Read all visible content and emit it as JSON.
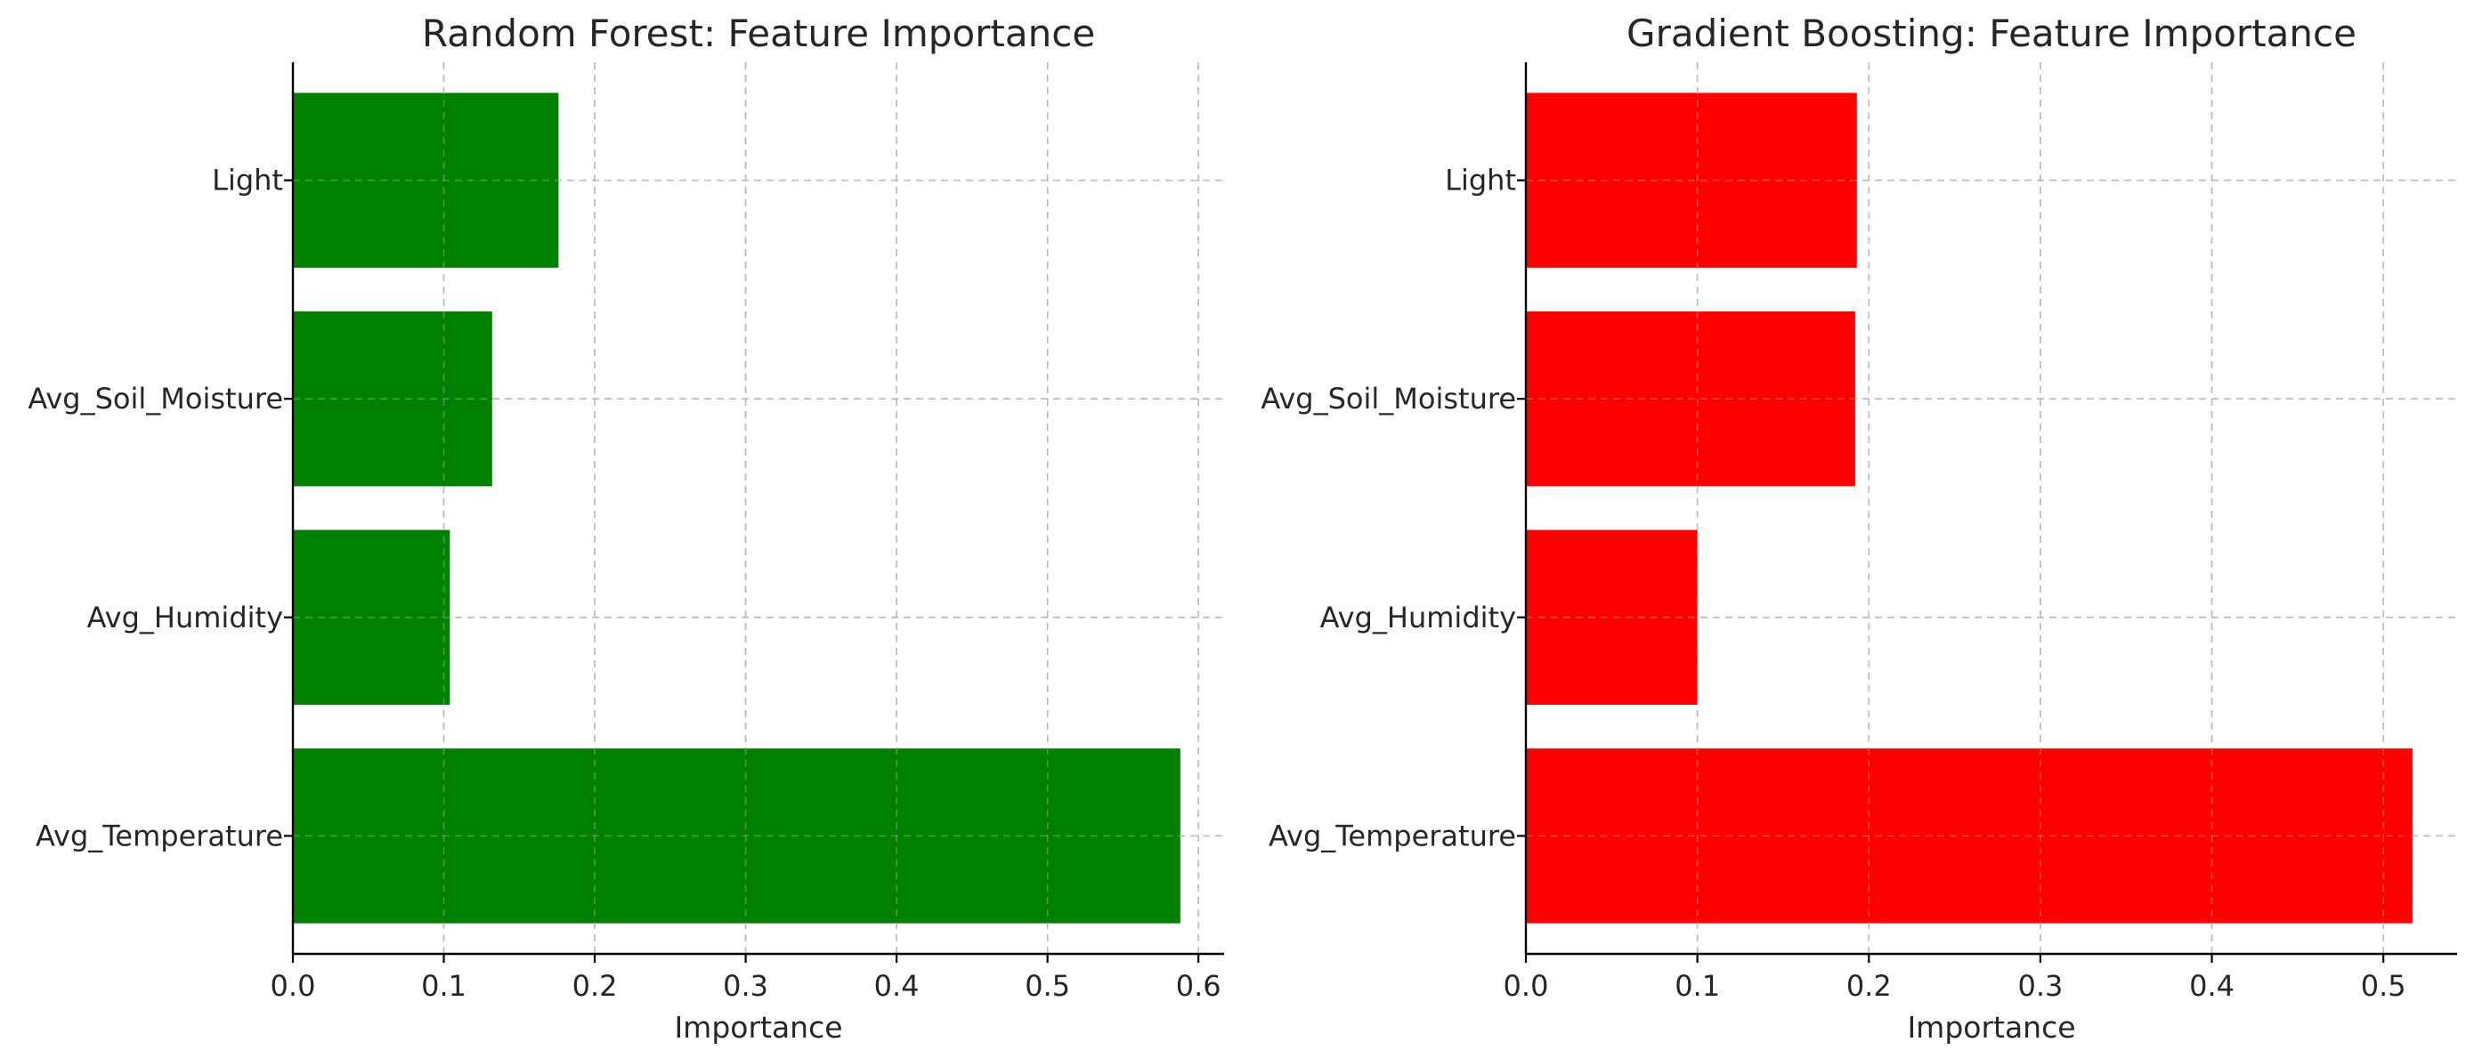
{
  "chart_data": [
    {
      "type": "bar",
      "orientation": "horizontal",
      "title": "Random Forest: Feature Importance",
      "xlabel": "Importance",
      "ylabel": "",
      "categories": [
        "Avg_Temperature",
        "Avg_Humidity",
        "Avg_Soil_Moisture",
        "Light"
      ],
      "values": [
        0.588,
        0.104,
        0.132,
        0.176
      ],
      "xlim": [
        0,
        0.617
      ],
      "xticks": [
        0.0,
        0.1,
        0.2,
        0.3,
        0.4,
        0.5,
        0.6
      ],
      "xtick_labels": [
        "0.0",
        "0.1",
        "0.2",
        "0.3",
        "0.4",
        "0.5",
        "0.6"
      ],
      "grid": true,
      "color": "#008000"
    },
    {
      "type": "bar",
      "orientation": "horizontal",
      "title": "Gradient Boosting: Feature Importance",
      "xlabel": "Importance",
      "ylabel": "",
      "categories": [
        "Avg_Temperature",
        "Avg_Humidity",
        "Avg_Soil_Moisture",
        "Light"
      ],
      "values": [
        0.517,
        0.1,
        0.192,
        0.193
      ],
      "xlim": [
        0,
        0.543
      ],
      "xticks": [
        0.0,
        0.1,
        0.2,
        0.3,
        0.4,
        0.5
      ],
      "xtick_labels": [
        "0.0",
        "0.1",
        "0.2",
        "0.3",
        "0.4",
        "0.5"
      ],
      "grid": true,
      "color": "#ff0000"
    }
  ]
}
